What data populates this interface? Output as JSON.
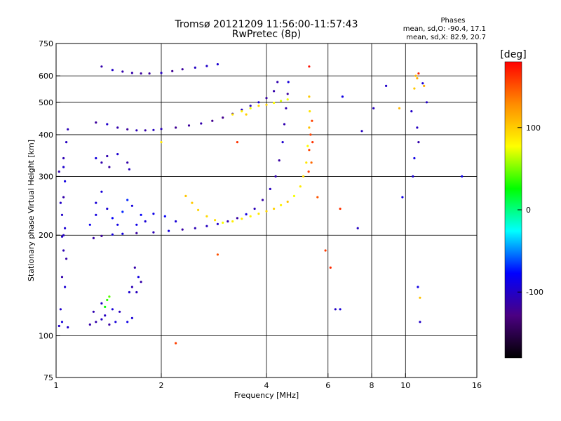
{
  "chart_data": {
    "type": "scatter",
    "title": "Tromsø 20121209 11:56:00-11:57:43",
    "subtitle": "RwPretec (8p)",
    "stats": {
      "heading": "Phases",
      "line_o": "mean, sd,O: -90.4, 17.1",
      "line_x": "mean, sd,X:  82.9, 20.7"
    },
    "xlabel": "Frequency [MHz]",
    "ylabel": "Stationary phase Virtual Height [km]",
    "x_scale": "log",
    "y_scale": "log",
    "xlim": [
      1,
      16
    ],
    "ylim": [
      75,
      750
    ],
    "x_ticks": [
      {
        "value": 1,
        "label": "1"
      },
      {
        "value": 2,
        "label": "2"
      },
      {
        "value": 4,
        "label": "4"
      },
      {
        "value": 6,
        "label": "6"
      },
      {
        "value": 8,
        "label": "8"
      },
      {
        "value": 10,
        "label": "10"
      },
      {
        "value": 16,
        "label": "16"
      }
    ],
    "x_grid": [
      2,
      4,
      6,
      8,
      10
    ],
    "y_ticks": [
      {
        "value": 75,
        "label": "75"
      },
      {
        "value": 100,
        "label": "100"
      },
      {
        "value": 200,
        "label": "200"
      },
      {
        "value": 300,
        "label": "300"
      },
      {
        "value": 400,
        "label": "400"
      },
      {
        "value": 500,
        "label": "500"
      },
      {
        "value": 600,
        "label": "600"
      },
      {
        "value": 750,
        "label": "750"
      }
    ],
    "y_grid": [
      100,
      200,
      300,
      400,
      500,
      600
    ],
    "grid": true,
    "colorbar": {
      "label": "[deg]",
      "range": [
        -180,
        180
      ],
      "ticks": [
        {
          "value": 100,
          "label": "100"
        },
        {
          "value": 0,
          "label": "0"
        },
        {
          "value": -100,
          "label": "-100"
        }
      ],
      "colors": [
        "#000000",
        "#4b0082",
        "#0000ff",
        "#00ffff",
        "#00ff00",
        "#ffff00",
        "#ff8c00",
        "#ff0000"
      ]
    },
    "series": [
      {
        "points": [
          [
            1.02,
            107
          ],
          [
            1.03,
            120
          ],
          [
            1.04,
            150
          ],
          [
            1.05,
            180
          ],
          [
            1.05,
            200
          ],
          [
            1.04,
            230
          ],
          [
            1.05,
            260
          ],
          [
            1.06,
            290
          ],
          [
            1.05,
            320
          ],
          [
            1.07,
            380
          ],
          [
            1.08,
            415
          ],
          [
            1.04,
            110
          ],
          [
            1.06,
            140
          ],
          [
            1.07,
            170
          ],
          [
            1.03,
            250
          ],
          [
            1.05,
            340
          ],
          [
            1.06,
            210
          ],
          [
            1.02,
            310
          ],
          [
            1.08,
            106
          ],
          [
            1.04,
            198
          ]
        ],
        "phase": -100
      },
      {
        "points": [
          [
            1.28,
            196
          ],
          [
            1.35,
            199
          ],
          [
            1.45,
            201
          ],
          [
            1.55,
            202
          ],
          [
            1.7,
            203
          ],
          [
            1.9,
            204
          ],
          [
            2.1,
            206
          ],
          [
            2.3,
            208
          ],
          [
            2.5,
            210
          ],
          [
            2.7,
            213
          ],
          [
            2.9,
            216
          ],
          [
            3.1,
            220
          ],
          [
            3.3,
            225
          ],
          [
            3.5,
            231
          ],
          [
            3.7,
            240
          ],
          [
            3.9,
            255
          ],
          [
            4.1,
            275
          ],
          [
            4.25,
            300
          ],
          [
            4.35,
            335
          ],
          [
            4.45,
            380
          ],
          [
            4.5,
            430
          ],
          [
            4.55,
            480
          ],
          [
            4.6,
            530
          ],
          [
            4.62,
            575
          ]
        ],
        "phase": -105
      },
      {
        "points": [
          [
            1.3,
            435
          ],
          [
            1.4,
            430
          ],
          [
            1.5,
            420
          ],
          [
            1.6,
            415
          ],
          [
            1.7,
            412
          ],
          [
            1.8,
            412
          ],
          [
            1.9,
            413
          ],
          [
            2.0,
            416
          ],
          [
            2.2,
            420
          ],
          [
            2.4,
            426
          ],
          [
            2.6,
            432
          ],
          [
            2.8,
            440
          ],
          [
            3.0,
            450
          ],
          [
            3.2,
            462
          ],
          [
            3.4,
            475
          ],
          [
            3.6,
            488
          ],
          [
            3.8,
            500
          ],
          [
            4.0,
            515
          ],
          [
            4.2,
            540
          ],
          [
            4.3,
            575
          ]
        ],
        "phase": -110
      },
      {
        "points": [
          [
            1.35,
            640
          ],
          [
            1.45,
            625
          ],
          [
            1.55,
            618
          ],
          [
            1.65,
            612
          ],
          [
            1.75,
            610
          ],
          [
            1.85,
            610
          ],
          [
            2.0,
            612
          ],
          [
            2.15,
            620
          ],
          [
            2.3,
            628
          ],
          [
            2.5,
            635
          ],
          [
            2.7,
            642
          ],
          [
            2.9,
            650
          ]
        ],
        "phase": -110
      },
      {
        "points": [
          [
            2.35,
            262
          ],
          [
            2.45,
            250
          ],
          [
            2.55,
            238
          ],
          [
            2.7,
            228
          ],
          [
            2.85,
            222
          ],
          [
            3.0,
            218
          ],
          [
            3.2,
            220
          ],
          [
            3.4,
            224
          ],
          [
            3.6,
            228
          ],
          [
            3.8,
            232
          ],
          [
            4.0,
            236
          ],
          [
            4.2,
            240
          ],
          [
            4.4,
            246
          ],
          [
            4.6,
            252
          ],
          [
            4.8,
            262
          ],
          [
            5.0,
            280
          ],
          [
            5.1,
            300
          ],
          [
            5.2,
            330
          ],
          [
            5.25,
            370
          ],
          [
            5.3,
            420
          ],
          [
            5.32,
            470
          ],
          [
            5.3,
            520
          ]
        ],
        "phase": 90
      },
      {
        "points": [
          [
            3.2,
            460
          ],
          [
            3.4,
            470
          ],
          [
            3.6,
            480
          ],
          [
            3.8,
            488
          ],
          [
            4.0,
            492
          ],
          [
            4.2,
            498
          ],
          [
            4.4,
            505
          ],
          [
            4.6,
            510
          ]
        ],
        "phase": 85
      },
      {
        "points": [
          [
            5.35,
            400
          ],
          [
            5.4,
            440
          ],
          [
            5.3,
            360
          ],
          [
            5.42,
            380
          ],
          [
            5.38,
            330
          ],
          [
            5.28,
            310
          ]
        ],
        "phase": 150
      },
      {
        "points": [
          [
            1.3,
            230
          ],
          [
            1.3,
            250
          ],
          [
            1.35,
            270
          ],
          [
            1.4,
            240
          ],
          [
            1.45,
            225
          ],
          [
            1.55,
            235
          ],
          [
            1.6,
            255
          ],
          [
            1.65,
            245
          ],
          [
            1.75,
            230
          ],
          [
            1.8,
            220
          ],
          [
            1.9,
            232
          ],
          [
            2.05,
            228
          ],
          [
            2.2,
            220
          ],
          [
            1.25,
            215
          ],
          [
            1.5,
            215
          ],
          [
            1.7,
            215
          ]
        ],
        "phase": -80
      },
      {
        "points": [
          [
            1.3,
            340
          ],
          [
            1.35,
            330
          ],
          [
            1.4,
            345
          ],
          [
            1.42,
            320
          ],
          [
            1.5,
            350
          ],
          [
            1.6,
            330
          ],
          [
            1.62,
            315
          ]
        ],
        "phase": -100
      },
      {
        "points": [
          [
            1.3,
            110
          ],
          [
            1.35,
            112
          ],
          [
            1.38,
            115
          ],
          [
            1.42,
            108
          ],
          [
            1.48,
            110
          ],
          [
            1.35,
            125
          ],
          [
            1.45,
            120
          ],
          [
            1.52,
            118
          ],
          [
            1.6,
            110
          ],
          [
            1.65,
            113
          ],
          [
            1.62,
            135
          ],
          [
            1.65,
            140
          ],
          [
            1.7,
            135
          ],
          [
            1.68,
            160
          ],
          [
            1.72,
            150
          ],
          [
            1.75,
            145
          ],
          [
            1.25,
            108
          ],
          [
            1.28,
            118
          ]
        ],
        "phase": -100
      },
      {
        "points": [
          [
            1.4,
            128
          ],
          [
            1.38,
            122
          ],
          [
            1.42,
            131
          ]
        ],
        "phase": 40
      },
      {
        "points": [
          [
            7.3,
            210
          ],
          [
            8.1,
            480
          ],
          [
            8.8,
            560
          ],
          [
            9.8,
            260
          ],
          [
            10.4,
            470
          ],
          [
            10.8,
            420
          ],
          [
            10.9,
            380
          ],
          [
            10.6,
            340
          ],
          [
            10.5,
            300
          ],
          [
            11.0,
            110
          ],
          [
            10.85,
            140
          ],
          [
            11.2,
            570
          ],
          [
            11.5,
            500
          ],
          [
            14.5,
            300
          ],
          [
            6.6,
            520
          ],
          [
            7.5,
            410
          ],
          [
            6.3,
            120
          ],
          [
            6.5,
            120
          ]
        ],
        "phase": -100
      },
      {
        "points": [
          [
            10.7,
            600
          ],
          [
            10.8,
            590
          ],
          [
            10.6,
            550
          ],
          [
            11.3,
            560
          ],
          [
            11.0,
            130
          ],
          [
            9.6,
            480
          ],
          [
            3.5,
            460
          ],
          [
            2.0,
            380
          ]
        ],
        "phase": 100
      },
      {
        "points": [
          [
            5.3,
            640
          ],
          [
            3.3,
            380
          ],
          [
            6.1,
            160
          ],
          [
            2.2,
            95
          ],
          [
            10.9,
            610
          ]
        ],
        "phase": 160
      },
      {
        "points": [
          [
            5.9,
            180
          ],
          [
            2.9,
            175
          ],
          [
            5.6,
            260
          ],
          [
            6.5,
            240
          ]
        ],
        "phase": 150
      }
    ]
  }
}
